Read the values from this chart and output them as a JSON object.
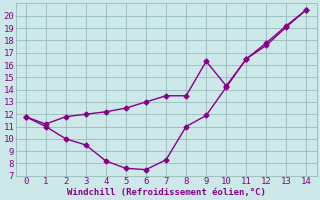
{
  "line_lower_x": [
    0,
    1,
    2,
    3,
    4,
    5,
    6,
    7,
    8,
    9,
    10,
    11,
    12,
    13,
    14
  ],
  "line_lower_y": [
    11.8,
    11.0,
    10.0,
    9.5,
    8.2,
    7.6,
    7.5,
    8.3,
    11.0,
    11.9,
    14.2,
    16.5,
    17.6,
    19.1,
    20.5
  ],
  "line_upper_x": [
    0,
    1,
    2,
    3,
    4,
    5,
    6,
    7,
    8,
    9,
    10,
    11,
    12,
    13,
    14
  ],
  "line_upper_y": [
    11.8,
    11.2,
    11.8,
    12.0,
    12.2,
    12.5,
    13.0,
    13.5,
    13.5,
    16.3,
    14.3,
    16.5,
    17.8,
    19.2,
    20.5
  ],
  "line_color": "#880088",
  "bg_color": "#cce8e8",
  "grid_color": "#99bbbb",
  "xlabel": "Windchill (Refroidissement éolien,°C)",
  "xlim": [
    -0.5,
    14.5
  ],
  "ylim": [
    7,
    21
  ],
  "xticks": [
    0,
    1,
    2,
    3,
    4,
    5,
    6,
    7,
    8,
    9,
    10,
    11,
    12,
    13,
    14
  ],
  "yticks": [
    7,
    8,
    9,
    10,
    11,
    12,
    13,
    14,
    15,
    16,
    17,
    18,
    19,
    20
  ],
  "marker": "D",
  "markersize": 2.5,
  "linewidth": 1.0
}
